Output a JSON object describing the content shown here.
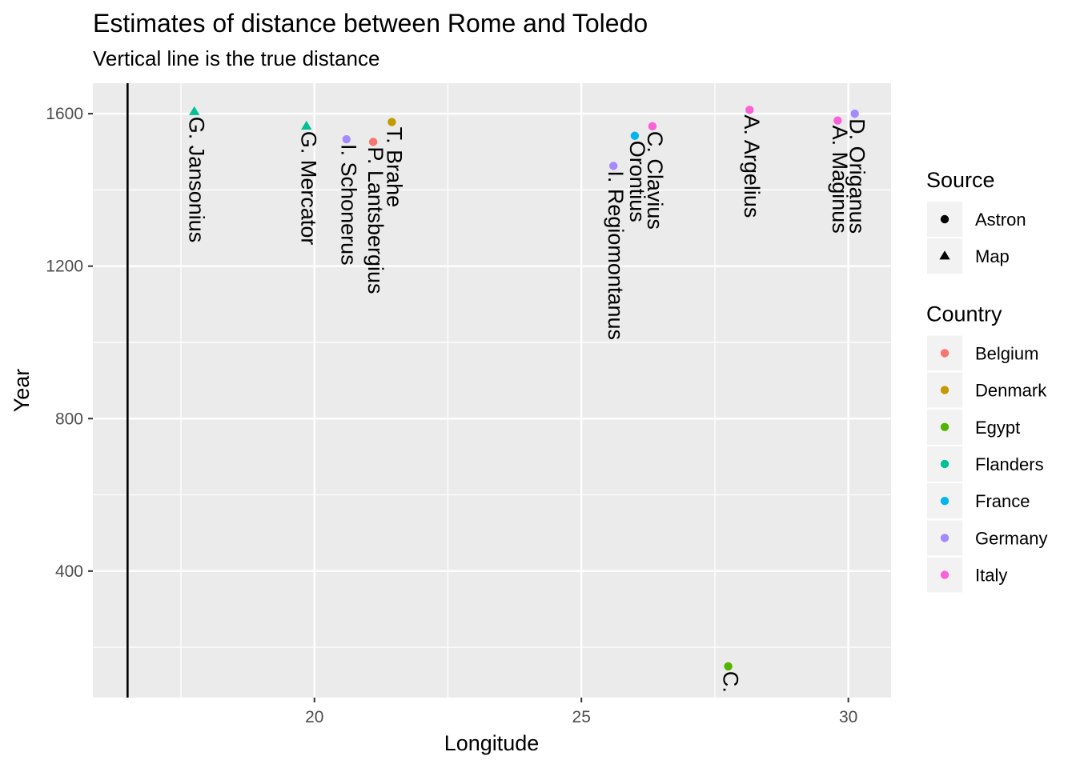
{
  "chart_data": {
    "type": "scatter",
    "title": "Estimates of distance between Rome and Toledo",
    "subtitle": "Vertical line is the true distance",
    "xlabel": "Longitude",
    "ylabel": "Year",
    "xlim": [
      15.85,
      30.8
    ],
    "ylim": [
      68,
      1680
    ],
    "x_ticks": [
      20,
      25,
      30
    ],
    "y_ticks": [
      400,
      800,
      1200,
      1600
    ],
    "grid": true,
    "true_distance": 16.5,
    "legend_position": "right",
    "legends": [
      {
        "title": "Source",
        "items": [
          {
            "label": "Astron",
            "shape": "circle"
          },
          {
            "label": "Map",
            "shape": "triangle"
          }
        ]
      },
      {
        "title": "Country",
        "items": [
          {
            "label": "Belgium",
            "color": "#F8766D"
          },
          {
            "label": "Denmark",
            "color": "#C49A00"
          },
          {
            "label": "Egypt",
            "color": "#53B400"
          },
          {
            "label": "Flanders",
            "color": "#00C094"
          },
          {
            "label": "France",
            "color": "#00B6EB"
          },
          {
            "label": "Germany",
            "color": "#A58AFF"
          },
          {
            "label": "Italy",
            "color": "#FB61D7"
          }
        ]
      }
    ],
    "points": [
      {
        "label": "G. Jansonius",
        "x": 17.75,
        "y": 1605,
        "country": "Flanders",
        "source": "Map"
      },
      {
        "label": "G. Mercator",
        "x": 19.85,
        "y": 1567,
        "country": "Flanders",
        "source": "Map"
      },
      {
        "label": "I. Schonerus",
        "x": 20.6,
        "y": 1533,
        "country": "Germany",
        "source": "Astron"
      },
      {
        "label": "P. Lantsbergius",
        "x": 21.1,
        "y": 1526,
        "country": "Belgium",
        "source": "Astron"
      },
      {
        "label": "T. Brahe",
        "x": 21.45,
        "y": 1578,
        "country": "Denmark",
        "source": "Astron"
      },
      {
        "label": "I. Regiomontanus",
        "x": 25.6,
        "y": 1463,
        "country": "Germany",
        "source": "Astron"
      },
      {
        "label": "Orontius",
        "x": 26.0,
        "y": 1542,
        "country": "France",
        "source": "Astron"
      },
      {
        "label": "C. Clavius",
        "x": 26.33,
        "y": 1567,
        "country": "Italy",
        "source": "Astron"
      },
      {
        "label": "C.",
        "x": 27.75,
        "y": 150,
        "country": "Egypt",
        "source": "Astron"
      },
      {
        "label": "A. Argelius",
        "x": 28.15,
        "y": 1610,
        "country": "Italy",
        "source": "Astron"
      },
      {
        "label": "A. Maginus",
        "x": 29.8,
        "y": 1582,
        "country": "Italy",
        "source": "Astron"
      },
      {
        "label": "D. Origanus",
        "x": 30.12,
        "y": 1600,
        "country": "Germany",
        "source": "Astron"
      }
    ]
  }
}
